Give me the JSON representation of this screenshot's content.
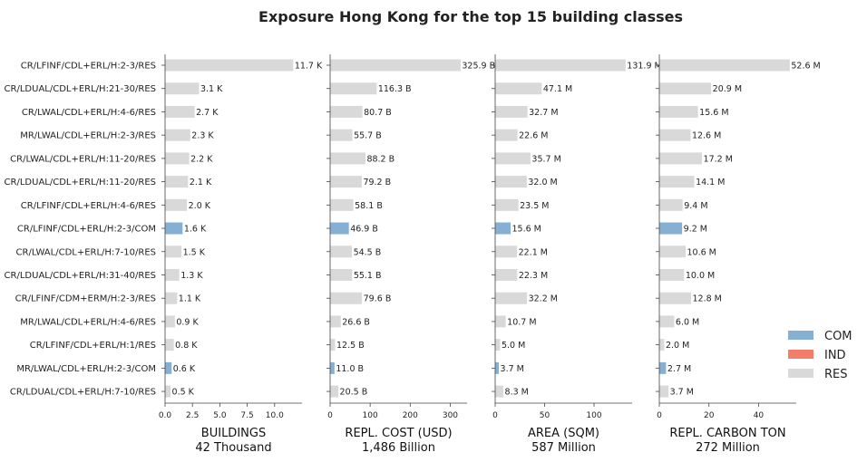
{
  "chart_data": {
    "type": "bar",
    "orientation": "horizontal",
    "title": "Exposure Hong Kong for the top 15 building classes",
    "categories": [
      "CR/LFINF/CDL+ERL/H:2-3/RES",
      "CR/LDUAL/CDL+ERL/H:21-30/RES",
      "CR/LWAL/CDL+ERL/H:4-6/RES",
      "MR/LWAL/CDL+ERL/H:2-3/RES",
      "CR/LWAL/CDL+ERL/H:11-20/RES",
      "CR/LDUAL/CDL+ERL/H:11-20/RES",
      "CR/LFINF/CDL+ERL/H:4-6/RES",
      "CR/LFINF/CDL+ERL/H:2-3/COM",
      "CR/LWAL/CDL+ERL/H:7-10/RES",
      "CR/LDUAL/CDL+ERL/H:31-40/RES",
      "CR/LFINF/CDM+ERM/H:2-3/RES",
      "MR/LWAL/CDL+ERL/H:4-6/RES",
      "CR/LFINF/CDL+ERL/H:1/RES",
      "MR/LWAL/CDL+ERL/H:2-3/COM",
      "CR/LDUAL/CDL+ERL/H:7-10/RES"
    ],
    "occupancy": [
      "RES",
      "RES",
      "RES",
      "RES",
      "RES",
      "RES",
      "RES",
      "COM",
      "RES",
      "RES",
      "RES",
      "RES",
      "RES",
      "COM",
      "RES"
    ],
    "legend": {
      "placement": "right",
      "entries": [
        {
          "label": "COM",
          "color": "#86b0d3"
        },
        {
          "label": "IND",
          "color": "#f47c6a"
        },
        {
          "label": "RES",
          "color": "#d9d9d9"
        }
      ]
    },
    "panels": [
      {
        "xlabel": "BUILDINGS",
        "total_label": "42 Thousand",
        "xlim": [
          0,
          12.5
        ],
        "ticks": [
          0,
          2.5,
          5,
          7.5,
          10
        ],
        "tick_labels": [
          "0.0",
          "2.5",
          "5.0",
          "7.5",
          "10.0"
        ],
        "values": [
          11.7,
          3.1,
          2.7,
          2.3,
          2.2,
          2.1,
          2.0,
          1.6,
          1.5,
          1.3,
          1.1,
          0.9,
          0.8,
          0.6,
          0.5
        ],
        "value_labels": [
          "11.7 K",
          "3.1 K",
          "2.7 K",
          "2.3 K",
          "2.2 K",
          "2.1 K",
          "2.0 K",
          "1.6 K",
          "1.5 K",
          "1.3 K",
          "1.1 K",
          "0.9 K",
          "0.8 K",
          "0.6 K",
          "0.5 K"
        ]
      },
      {
        "xlabel": "REPL. COST (USD)",
        "total_label": "1,486 Billion",
        "xlim": [
          0,
          342
        ],
        "ticks": [
          0,
          100,
          200,
          300
        ],
        "tick_labels": [
          "0",
          "100",
          "200",
          "300"
        ],
        "values": [
          325.9,
          116.3,
          80.7,
          55.7,
          88.2,
          79.2,
          58.1,
          46.9,
          54.5,
          55.1,
          79.6,
          26.6,
          12.5,
          11.0,
          20.5
        ],
        "value_labels": [
          "325.9 B",
          "116.3 B",
          "80.7 B",
          "55.7 B",
          "88.2 B",
          "79.2 B",
          "58.1 B",
          "46.9 B",
          "54.5 B",
          "55.1 B",
          "79.6 B",
          "26.6 B",
          "12.5 B",
          "11.0 B",
          "20.5 B"
        ]
      },
      {
        "xlabel": "AREA (SQM)",
        "total_label": "587 Million",
        "xlim": [
          0,
          138.5
        ],
        "ticks": [
          0,
          50,
          100
        ],
        "tick_labels": [
          "0",
          "50",
          "100"
        ],
        "values": [
          131.9,
          47.1,
          32.7,
          22.6,
          35.7,
          32.0,
          23.5,
          15.6,
          22.1,
          22.3,
          32.2,
          10.7,
          5.0,
          3.7,
          8.3
        ],
        "value_labels": [
          "131.9 M",
          "47.1 M",
          "32.7 M",
          "22.6 M",
          "35.7 M",
          "32.0 M",
          "23.5 M",
          "15.6 M",
          "22.1 M",
          "22.3 M",
          "32.2 M",
          "10.7 M",
          "5.0 M",
          "3.7 M",
          "8.3 M"
        ]
      },
      {
        "xlabel": "REPL. CARBON TON",
        "total_label": "272 Million",
        "xlim": [
          0,
          55.2
        ],
        "ticks": [
          0,
          20,
          40
        ],
        "tick_labels": [
          "0",
          "20",
          "40"
        ],
        "values": [
          52.6,
          20.9,
          15.6,
          12.6,
          17.2,
          14.1,
          9.4,
          9.2,
          10.6,
          10.0,
          12.8,
          6.0,
          2.0,
          2.7,
          3.7
        ],
        "value_labels": [
          "52.6 M",
          "20.9 M",
          "15.6 M",
          "12.6 M",
          "17.2 M",
          "14.1 M",
          "9.4 M",
          "9.2 M",
          "10.6 M",
          "10.0 M",
          "12.8 M",
          "6.0 M",
          "2.0 M",
          "2.7 M",
          "3.7 M"
        ]
      }
    ]
  }
}
